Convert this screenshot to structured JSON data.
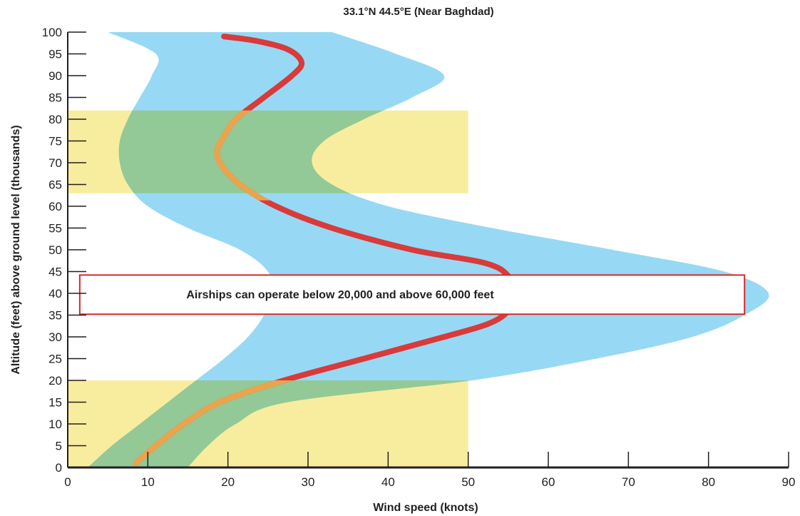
{
  "chart_data": {
    "type": "line",
    "title": "33.1°N 44.5°E (Near Baghdad)",
    "xlabel": "Wind speed (knots)",
    "ylabel": "Altitude (feet) above ground level (thousands)",
    "xlim": [
      0,
      90
    ],
    "ylim": [
      0,
      100
    ],
    "x_ticks": [
      0,
      10,
      20,
      30,
      40,
      50,
      60,
      70,
      80,
      90
    ],
    "y_ticks": [
      0,
      5,
      10,
      15,
      20,
      25,
      30,
      35,
      40,
      45,
      50,
      55,
      60,
      65,
      70,
      75,
      80,
      85,
      90,
      95,
      100
    ],
    "grid": false,
    "colors": {
      "envelope": "#97d9f4",
      "operating_zone": "#f5e77e",
      "mean_line": "#d93a3a",
      "mean_line_in_zone": "#eca44c",
      "annotation_border": "#d12b2b",
      "axis": "#231f20"
    },
    "envelope": {
      "lower": [
        {
          "y": 0,
          "x": 2.5
        },
        {
          "y": 5,
          "x": 5.5
        },
        {
          "y": 10,
          "x": 9
        },
        {
          "y": 15,
          "x": 12.5
        },
        {
          "y": 20,
          "x": 16
        },
        {
          "y": 25,
          "x": 19.5
        },
        {
          "y": 30,
          "x": 22.5
        },
        {
          "y": 35,
          "x": 24.5
        },
        {
          "y": 40,
          "x": 25.5
        },
        {
          "y": 45,
          "x": 25
        },
        {
          "y": 50,
          "x": 21.5
        },
        {
          "y": 55,
          "x": 15
        },
        {
          "y": 60,
          "x": 10
        },
        {
          "y": 65,
          "x": 7.5
        },
        {
          "y": 70,
          "x": 6.5
        },
        {
          "y": 75,
          "x": 6.5
        },
        {
          "y": 80,
          "x": 7.5
        },
        {
          "y": 85,
          "x": 9
        },
        {
          "y": 90,
          "x": 10.5
        },
        {
          "y": 95,
          "x": 11
        },
        {
          "y": 100,
          "x": 5
        }
      ],
      "upper": [
        {
          "y": 0,
          "x": 15
        },
        {
          "y": 5,
          "x": 17.5
        },
        {
          "y": 10,
          "x": 21
        },
        {
          "y": 15,
          "x": 27.5
        },
        {
          "y": 20,
          "x": 50.5
        },
        {
          "y": 25,
          "x": 66
        },
        {
          "y": 30,
          "x": 78
        },
        {
          "y": 35,
          "x": 84.5
        },
        {
          "y": 40,
          "x": 87.5
        },
        {
          "y": 45,
          "x": 82
        },
        {
          "y": 50,
          "x": 68
        },
        {
          "y": 55,
          "x": 53
        },
        {
          "y": 60,
          "x": 40
        },
        {
          "y": 65,
          "x": 33
        },
        {
          "y": 70,
          "x": 30.5
        },
        {
          "y": 75,
          "x": 32
        },
        {
          "y": 80,
          "x": 37
        },
        {
          "y": 85,
          "x": 43
        },
        {
          "y": 90,
          "x": 47
        },
        {
          "y": 95,
          "x": 41
        },
        {
          "y": 100,
          "x": 33
        }
      ]
    },
    "mean_line": [
      {
        "y": 1,
        "x": 8.5
      },
      {
        "y": 5,
        "x": 11
      },
      {
        "y": 10,
        "x": 14.5
      },
      {
        "y": 15,
        "x": 19
      },
      {
        "y": 20,
        "x": 27
      },
      {
        "y": 25,
        "x": 37
      },
      {
        "y": 30,
        "x": 47
      },
      {
        "y": 33,
        "x": 52.5
      },
      {
        "y": 36,
        "x": 55
      },
      {
        "y": 40,
        "x": 55.5
      },
      {
        "y": 44,
        "x": 55
      },
      {
        "y": 47,
        "x": 52
      },
      {
        "y": 50,
        "x": 43
      },
      {
        "y": 55,
        "x": 33
      },
      {
        "y": 60,
        "x": 26
      },
      {
        "y": 65,
        "x": 21.5
      },
      {
        "y": 70,
        "x": 19
      },
      {
        "y": 73,
        "x": 18.7
      },
      {
        "y": 76,
        "x": 19.5
      },
      {
        "y": 80,
        "x": 21
      },
      {
        "y": 85,
        "x": 24.5
      },
      {
        "y": 90,
        "x": 28
      },
      {
        "y": 93,
        "x": 29.2
      },
      {
        "y": 96,
        "x": 27.5
      },
      {
        "y": 98,
        "x": 23.5
      },
      {
        "y": 99,
        "x": 19.5
      }
    ],
    "operating_zones": [
      {
        "x_range": [
          0,
          50
        ],
        "y_range": [
          0,
          20
        ]
      },
      {
        "x_range": [
          0,
          50
        ],
        "y_range": [
          63,
          82
        ]
      }
    ],
    "annotation": {
      "text": "Airships can operate below 20,000 and above 60,000 feet",
      "x_range": [
        1.5,
        84.5
      ],
      "y_range": [
        35.2,
        44.2
      ]
    }
  }
}
